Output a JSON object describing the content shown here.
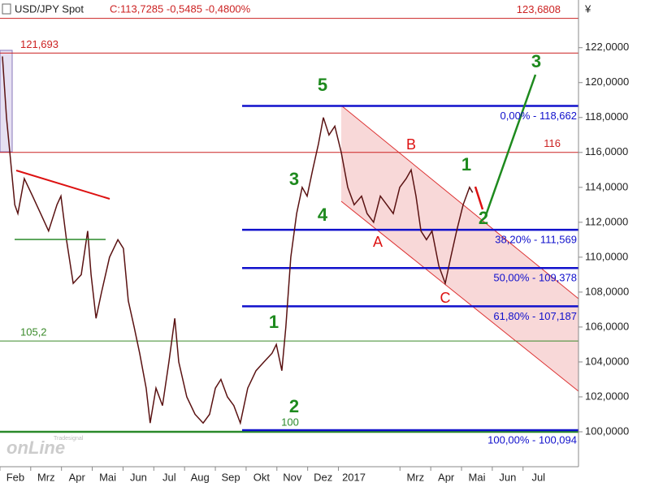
{
  "chart_data": {
    "type": "line",
    "symbol": "USD/JPY Spot",
    "quote": "C:113,7285 -0,5485 -0,4800%",
    "currency": "¥",
    "logo": {
      "small": "Tradesignal",
      "big": "onLine"
    },
    "xlim": [
      1.5,
      20.3
    ],
    "ylim": [
      98,
      123.8
    ],
    "xticks": [
      {
        "value": 2,
        "label": "Feb"
      },
      {
        "value": 3,
        "label": "Mrz"
      },
      {
        "value": 4,
        "label": "Apr"
      },
      {
        "value": 5,
        "label": "Mai"
      },
      {
        "value": 6,
        "label": "Jun"
      },
      {
        "value": 7,
        "label": "Jul"
      },
      {
        "value": 8,
        "label": "Aug"
      },
      {
        "value": 9,
        "label": "Sep"
      },
      {
        "value": 10,
        "label": "Okt"
      },
      {
        "value": 11,
        "label": "Nov"
      },
      {
        "value": 12,
        "label": "Dez"
      },
      {
        "value": 13,
        "label": "2017"
      },
      {
        "value": 15,
        "label": "Mrz"
      },
      {
        "value": 16,
        "label": "Apr"
      },
      {
        "value": 17,
        "label": "Mai"
      },
      {
        "value": 18,
        "label": "Jun"
      },
      {
        "value": 19,
        "label": "Jul"
      }
    ],
    "yticks": [
      {
        "value": 100,
        "label": "100,0000"
      },
      {
        "value": 102,
        "label": "102,0000"
      },
      {
        "value": 104,
        "label": "104,0000"
      },
      {
        "value": 106,
        "label": "106,0000"
      },
      {
        "value": 108,
        "label": "108,0000"
      },
      {
        "value": 110,
        "label": "110,0000"
      },
      {
        "value": 112,
        "label": "112,0000"
      },
      {
        "value": 114,
        "label": "114,0000"
      },
      {
        "value": 116,
        "label": "116,0000"
      },
      {
        "value": 118,
        "label": "118,0000"
      },
      {
        "value": 120,
        "label": "120,0000"
      },
      {
        "value": 122,
        "label": "122,0000"
      }
    ],
    "series": [
      {
        "name": "USD/JPY",
        "color": "#5a1212",
        "x": [
          1.58,
          1.71,
          1.82,
          1.98,
          2.08,
          2.29,
          2.56,
          2.82,
          3.08,
          3.35,
          3.48,
          3.66,
          3.88,
          4.14,
          4.35,
          4.46,
          4.62,
          4.8,
          5.06,
          5.33,
          5.51,
          5.67,
          5.86,
          6.04,
          6.25,
          6.38,
          6.57,
          6.78,
          6.99,
          7.18,
          7.31,
          7.57,
          7.84,
          8.1,
          8.31,
          8.5,
          8.68,
          8.89,
          9.1,
          9.31,
          9.55,
          9.82,
          10.08,
          10.34,
          10.48,
          10.66,
          10.79,
          10.95,
          11.14,
          11.32,
          11.48,
          11.66,
          11.85,
          12.01,
          12.19,
          12.38,
          12.59,
          12.8,
          13.01,
          13.25,
          13.43,
          13.64,
          13.86,
          14.07,
          14.28,
          14.49,
          14.7,
          14.86,
          15.02,
          15.18,
          15.36,
          15.54,
          15.76,
          15.97,
          16.15,
          16.34,
          16.55,
          16.76,
          16.86
        ],
        "values": [
          121.5,
          118,
          116,
          113,
          112.5,
          114.5,
          113.5,
          112.5,
          111.5,
          113,
          113.5,
          111,
          108.5,
          109,
          111.5,
          109,
          106.5,
          108,
          110,
          111,
          110.5,
          107.5,
          106,
          104.5,
          102.5,
          100.5,
          102.5,
          101.5,
          104,
          106.5,
          104,
          102,
          101,
          100.5,
          101,
          102.5,
          103,
          102,
          101.5,
          100.5,
          102.5,
          103.5,
          104,
          104.5,
          105,
          103.5,
          106,
          110,
          112.5,
          114,
          113.5,
          115,
          116.5,
          118,
          117,
          117.5,
          116,
          114,
          113,
          113.5,
          112.5,
          112,
          113.5,
          113,
          112.5,
          114,
          114.5,
          115,
          113.5,
          111.5,
          111,
          111.5,
          109.5,
          108.5,
          110,
          111.5,
          113,
          114,
          113.7
        ]
      }
    ],
    "levels": [
      {
        "value": 123.6808,
        "label": "123,6808",
        "color": "#cc2222"
      },
      {
        "value": 121.693,
        "label": "121,693",
        "color": "#cc2222"
      },
      {
        "value": 116,
        "label": "116",
        "color": "#cc2222"
      },
      {
        "value": 105.2,
        "label": "105,2",
        "color": "#3a8a2a"
      },
      {
        "value": 100,
        "label": "100",
        "color": "#2a8a2a"
      }
    ],
    "fib_levels": [
      {
        "value": 118.662,
        "label": "0,00% - 118,662"
      },
      {
        "value": 111.569,
        "label": "38,20% - 111,569"
      },
      {
        "value": 109.378,
        "label": "50,00% - 109,378"
      },
      {
        "value": 107.187,
        "label": "61,80% - 107,187"
      },
      {
        "value": 100.094,
        "label": "100,00% - 100,094"
      }
    ],
    "fib_color": "#1010cc",
    "waves": [
      "5",
      "3",
      "4",
      "1",
      "2",
      "1",
      "2",
      "3"
    ],
    "corrections": [
      "A",
      "B",
      "C"
    ]
  }
}
